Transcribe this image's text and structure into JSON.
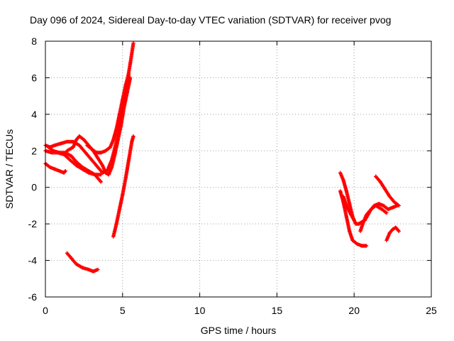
{
  "chart_data": {
    "type": "scatter",
    "title": "Day 096 of 2024, Sidereal Day-to-day VTEC variation (SDTVAR) for receiver pvog",
    "xlabel": "GPS time / hours",
    "ylabel": "SDTVAR / TECUs",
    "xlim": [
      0,
      25
    ],
    "ylim": [
      -6,
      8
    ],
    "x_ticks": [
      0,
      5,
      10,
      15,
      20,
      25
    ],
    "y_ticks": [
      -6,
      -4,
      -2,
      0,
      2,
      4,
      6,
      8
    ],
    "x_tick_labels": [
      "0",
      "5",
      "10",
      "15",
      "20",
      "25"
    ],
    "y_tick_labels": [
      "-6",
      "-4",
      "-2",
      "0",
      "2",
      "4",
      "6",
      "8"
    ],
    "grid": true,
    "marker_color": "#ff0000",
    "series": [
      {
        "tracks": [
          [
            [
              0.0,
              2.3
            ],
            [
              0.3,
              2.2
            ],
            [
              0.6,
              2.3
            ],
            [
              1.0,
              2.4
            ],
            [
              1.4,
              2.5
            ],
            [
              1.8,
              2.5
            ],
            [
              2.2,
              2.3
            ],
            [
              2.6,
              1.9
            ],
            [
              3.0,
              1.5
            ],
            [
              3.4,
              1.1
            ],
            [
              3.7,
              0.8
            ],
            [
              4.0,
              0.9
            ],
            [
              4.3,
              1.5
            ],
            [
              4.6,
              2.5
            ],
            [
              4.9,
              3.8
            ],
            [
              5.1,
              4.8
            ],
            [
              5.3,
              5.8
            ],
            [
              5.5,
              6.8
            ],
            [
              5.7,
              7.9
            ]
          ],
          [
            [
              0.0,
              2.0
            ],
            [
              0.4,
              1.9
            ],
            [
              0.8,
              1.9
            ],
            [
              1.2,
              1.8
            ],
            [
              1.6,
              1.5
            ],
            [
              2.0,
              1.2
            ],
            [
              2.4,
              1.0
            ],
            [
              2.8,
              0.8
            ],
            [
              3.2,
              0.7
            ],
            [
              3.6,
              0.7
            ]
          ],
          [
            [
              0.2,
              2.2
            ],
            [
              0.5,
              2.0
            ],
            [
              0.9,
              1.9
            ],
            [
              1.3,
              1.9
            ],
            [
              1.7,
              1.7
            ],
            [
              2.0,
              1.4
            ],
            [
              2.4,
              1.1
            ],
            [
              2.8,
              0.9
            ],
            [
              3.2,
              0.7
            ],
            [
              3.6,
              0.3
            ]
          ],
          [
            [
              1.4,
              2.0
            ],
            [
              1.8,
              2.2
            ],
            [
              2.0,
              2.6
            ],
            [
              2.2,
              2.8
            ],
            [
              2.5,
              2.6
            ],
            [
              2.8,
              2.3
            ],
            [
              3.1,
              2.0
            ],
            [
              3.4,
              1.6
            ],
            [
              3.7,
              1.2
            ],
            [
              3.9,
              0.8
            ],
            [
              4.1,
              0.7
            ],
            [
              4.3,
              1.1
            ],
            [
              4.5,
              1.8
            ],
            [
              4.7,
              2.6
            ],
            [
              4.9,
              3.4
            ],
            [
              5.1,
              4.4
            ],
            [
              5.3,
              5.2
            ],
            [
              5.5,
              6.0
            ]
          ],
          [
            [
              2.7,
              2.3
            ],
            [
              3.0,
              2.1
            ],
            [
              3.3,
              1.9
            ],
            [
              3.6,
              1.9
            ],
            [
              3.9,
              2.0
            ],
            [
              4.2,
              2.2
            ],
            [
              4.4,
              2.6
            ],
            [
              4.6,
              3.2
            ],
            [
              4.8,
              4.0
            ],
            [
              5.0,
              4.8
            ],
            [
              5.2,
              5.6
            ],
            [
              5.4,
              6.2
            ]
          ],
          [
            [
              0.0,
              1.3
            ],
            [
              0.3,
              1.1
            ],
            [
              0.6,
              1.0
            ],
            [
              0.9,
              0.9
            ],
            [
              1.2,
              0.8
            ],
            [
              1.3,
              0.9
            ]
          ],
          [
            [
              1.4,
              -3.6
            ],
            [
              1.7,
              -3.9
            ],
            [
              2.0,
              -4.2
            ],
            [
              2.4,
              -4.4
            ],
            [
              2.8,
              -4.5
            ],
            [
              3.1,
              -4.6
            ],
            [
              3.4,
              -4.5
            ]
          ],
          [
            [
              4.4,
              -2.7
            ],
            [
              4.6,
              -2.0
            ],
            [
              4.8,
              -1.2
            ],
            [
              5.0,
              -0.4
            ],
            [
              5.2,
              0.5
            ],
            [
              5.4,
              1.5
            ],
            [
              5.6,
              2.5
            ],
            [
              5.7,
              2.8
            ]
          ],
          [
            [
              19.1,
              0.8
            ],
            [
              19.3,
              0.4
            ],
            [
              19.5,
              -0.2
            ],
            [
              19.7,
              -0.9
            ],
            [
              19.9,
              -1.6
            ],
            [
              20.1,
              -2.0
            ],
            [
              20.3,
              -2.0
            ],
            [
              20.5,
              -1.9
            ],
            [
              20.7,
              -1.8
            ],
            [
              20.9,
              -1.5
            ],
            [
              21.1,
              -1.2
            ],
            [
              21.3,
              -1.0
            ],
            [
              21.6,
              -0.9
            ],
            [
              21.9,
              -1.0
            ],
            [
              22.2,
              -1.2
            ],
            [
              22.5,
              -1.1
            ],
            [
              22.8,
              -1.0
            ]
          ],
          [
            [
              19.1,
              -0.2
            ],
            [
              19.3,
              -0.8
            ],
            [
              19.5,
              -1.6
            ],
            [
              19.7,
              -2.4
            ],
            [
              19.9,
              -2.9
            ],
            [
              20.2,
              -3.1
            ],
            [
              20.5,
              -3.2
            ],
            [
              20.8,
              -3.2
            ]
          ],
          [
            [
              19.3,
              -0.5
            ],
            [
              19.5,
              -1.0
            ],
            [
              19.8,
              -1.5
            ],
            [
              20.0,
              -1.8
            ]
          ],
          [
            [
              20.4,
              -2.4
            ],
            [
              20.6,
              -1.9
            ],
            [
              20.8,
              -1.5
            ],
            [
              21.1,
              -1.2
            ],
            [
              21.4,
              -1.0
            ],
            [
              21.8,
              -1.2
            ],
            [
              22.1,
              -1.4
            ]
          ],
          [
            [
              21.4,
              0.6
            ],
            [
              21.7,
              0.3
            ],
            [
              22.0,
              -0.1
            ],
            [
              22.3,
              -0.5
            ],
            [
              22.6,
              -0.8
            ],
            [
              22.9,
              -1.0
            ]
          ],
          [
            [
              22.1,
              -2.9
            ],
            [
              22.3,
              -2.5
            ],
            [
              22.5,
              -2.3
            ],
            [
              22.7,
              -2.2
            ],
            [
              22.9,
              -2.4
            ]
          ]
        ]
      }
    ]
  }
}
